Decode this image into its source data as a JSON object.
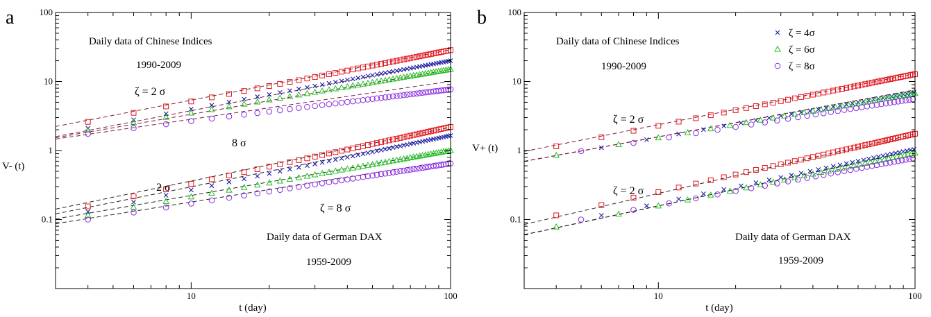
{
  "chart_data": [
    {
      "type": "scatter",
      "panel_label": "a",
      "xscale": "log",
      "yscale": "log",
      "xlim": [
        3,
        100
      ],
      "ylim": [
        0.01,
        100
      ],
      "xlabel": "t (day)",
      "ylabel": "V- (t)",
      "x_ticks": [
        "10",
        "100"
      ],
      "y_ticks": [
        "0.1",
        "1",
        "10",
        "100"
      ],
      "annotations": {
        "top_title": "Daily data of Chinese Indices",
        "top_years": "1990-2009",
        "top_zeta2": "ζ = 2 σ",
        "top_8": "8 σ",
        "bottom_2": "2 σ",
        "bottom_zeta8": "ζ = 8 σ",
        "bottom_title": "Daily data of German DAX",
        "bottom_years": "1959-2009"
      },
      "series": [
        {
          "group": "Chinese Indices",
          "marker": "square",
          "color": "#e8141b",
          "t_start": 4,
          "t_step": 2,
          "t_end": 100,
          "v_start": 2.6,
          "v_end": 28.5,
          "fit": {
            "a": 1.0,
            "b": 0.73
          }
        },
        {
          "group": "Chinese Indices",
          "marker": "cross",
          "color": "#1a1aa8",
          "t_start": 4,
          "t_step": 2,
          "t_end": 100,
          "v_start": 2.1,
          "v_end": 20.0,
          "fit": {
            "a": 0.72,
            "b": 0.72
          }
        },
        {
          "group": "Chinese Indices",
          "marker": "triangle",
          "color": "#22c022",
          "t_start": 4,
          "t_step": 2,
          "t_end": 100,
          "v_start": 1.95,
          "v_end": 15.0,
          "fit": {
            "a": 0.75,
            "b": 0.65
          }
        },
        {
          "group": "Chinese Indices",
          "marker": "circle",
          "color": "#8a2be2",
          "t_start": 4,
          "t_step": 2,
          "t_end": 100,
          "v_start": 1.75,
          "v_end": 7.7,
          "fit": {
            "a": 0.8,
            "b": 0.55
          }
        },
        {
          "group": "German DAX",
          "marker": "square",
          "color": "#e8141b",
          "t_start": 4,
          "t_step": 2,
          "t_end": 100,
          "v_start": 0.155,
          "v_end": 2.2,
          "fit": {
            "a": 0.06,
            "b": 0.78
          }
        },
        {
          "group": "German DAX",
          "marker": "cross",
          "color": "#1a1aa8",
          "t_start": 4,
          "t_step": 2,
          "t_end": 100,
          "v_start": 0.13,
          "v_end": 1.65,
          "fit": {
            "a": 0.053,
            "b": 0.75
          }
        },
        {
          "group": "German DAX",
          "marker": "triangle",
          "color": "#22c022",
          "t_start": 4,
          "t_step": 2,
          "t_end": 100,
          "v_start": 0.115,
          "v_end": 1.0,
          "fit": {
            "a": 0.05,
            "b": 0.65
          }
        },
        {
          "group": "German DAX",
          "marker": "circle",
          "color": "#8a2be2",
          "t_start": 4,
          "t_step": 2,
          "t_end": 100,
          "v_start": 0.1,
          "v_end": 0.65,
          "fit": {
            "a": 0.045,
            "b": 0.6
          }
        }
      ]
    },
    {
      "type": "scatter",
      "panel_label": "b",
      "xscale": "log",
      "yscale": "log",
      "xlim": [
        3,
        100
      ],
      "ylim": [
        0.01,
        100
      ],
      "xlabel": "t (day)",
      "ylabel": "V+ (t)",
      "x_ticks": [
        "10",
        "100"
      ],
      "y_ticks": [
        "0.1",
        "1",
        "10",
        "100"
      ],
      "legend": {
        "position": "top-right",
        "entries": [
          {
            "label": "ζ = 4σ",
            "marker": "cross",
            "color": "#1a1aa8"
          },
          {
            "label": "ζ = 6σ",
            "marker": "triangle",
            "color": "#22c022"
          },
          {
            "label": "ζ = 8σ",
            "marker": "circle",
            "color": "#8a2be2"
          }
        ]
      },
      "annotations": {
        "top_title": "Daily data of Chinese Indices",
        "top_years": "1990-2009",
        "top_zeta2": "ζ = 2 σ",
        "bottom_zeta2": "ζ = 2 σ",
        "bottom_title": "Daily data of German DAX",
        "bottom_years": "1959-2009"
      },
      "series": [
        {
          "group": "Chinese Indices",
          "marker": "square",
          "color": "#e8141b",
          "t_start": 4,
          "t_step": 2,
          "t_end": 100,
          "v_start": 1.15,
          "v_end": 12.8,
          "fit": {
            "a": 0.43,
            "b": 0.74
          }
        },
        {
          "group": "Chinese Indices",
          "marker": "cross",
          "color": "#1a1aa8",
          "t_start": 6,
          "t_step": 3,
          "t_end": 100,
          "v_start": 1.1,
          "v_end": 7.0,
          "fit": {
            "a": 0.33,
            "b": 0.68
          }
        },
        {
          "group": "Chinese Indices",
          "marker": "triangle",
          "color": "#22c022",
          "t_start": 4,
          "t_step": 3,
          "t_end": 100,
          "v_start": 0.85,
          "v_end": 6.7,
          "fit": {
            "a": 0.33,
            "b": 0.68
          }
        },
        {
          "group": "Chinese Indices",
          "marker": "circle",
          "color": "#8a2be2",
          "t_start": 5,
          "t_step": 3,
          "t_end": 100,
          "v_start": 0.98,
          "v_end": 5.6,
          "fit": {
            "a": 0.33,
            "b": 0.68
          }
        },
        {
          "group": "German DAX",
          "marker": "square",
          "color": "#e8141b",
          "t_start": 4,
          "t_step": 2,
          "t_end": 100,
          "v_start": 0.115,
          "v_end": 1.75,
          "fit": {
            "a": 0.033,
            "b": 0.86
          }
        },
        {
          "group": "German DAX",
          "marker": "cross",
          "color": "#1a1aa8",
          "t_start": 6,
          "t_step": 3,
          "t_end": 100,
          "v_start": 0.115,
          "v_end": 1.05,
          "fit": {
            "a": 0.025,
            "b": 0.8
          }
        },
        {
          "group": "German DAX",
          "marker": "triangle",
          "color": "#22c022",
          "t_start": 4,
          "t_step": 3,
          "t_end": 100,
          "v_start": 0.078,
          "v_end": 0.92,
          "fit": {
            "a": 0.025,
            "b": 0.8
          }
        },
        {
          "group": "German DAX",
          "marker": "circle",
          "color": "#8a2be2",
          "t_start": 5,
          "t_step": 3,
          "t_end": 100,
          "v_start": 0.1,
          "v_end": 0.78,
          "fit": {
            "a": 0.025,
            "b": 0.8
          }
        }
      ]
    }
  ]
}
